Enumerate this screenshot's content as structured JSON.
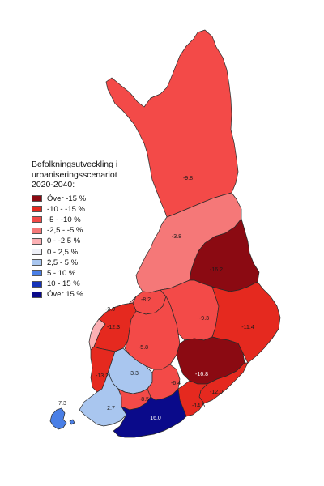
{
  "legend": {
    "title_lines": [
      "Befolkningsutveckling i",
      "urbaniseringsscenariot",
      "2020-2040:"
    ],
    "items": [
      {
        "label": "Över -15 %",
        "color": "#8b0a12"
      },
      {
        "label": "-10 - -15 %",
        "color": "#e5291f"
      },
      {
        "label": "-5 - -10 %",
        "color": "#f34a48"
      },
      {
        "label": "-2,5 - -5 %",
        "color": "#f57878"
      },
      {
        "label": "0 - -2,5 %",
        "color": "#fbb0b4"
      },
      {
        "label": "0 - 2,5 %",
        "color": "#eef0f8"
      },
      {
        "label": "2,5 - 5 %",
        "color": "#a9c6ef"
      },
      {
        "label": "5 - 10 %",
        "color": "#4a7fe6"
      },
      {
        "label": "10 - 15 %",
        "color": "#1533b9"
      },
      {
        "label": "Över 15 %",
        "color": "#0a0a8a"
      }
    ]
  },
  "regions": [
    {
      "name": "lappland",
      "value": "-9.8",
      "color": "#f34a48"
    },
    {
      "name": "norra-osterbotten",
      "value": "-3.8",
      "color": "#f57878"
    },
    {
      "name": "kajanaland",
      "value": "-16.2",
      "color": "#8b0a12"
    },
    {
      "name": "mellersta-osterbotten",
      "value": "-8.2",
      "color": "#f34a48"
    },
    {
      "name": "osterbotten",
      "value": "-2.0",
      "color": "#fbb0b4"
    },
    {
      "name": "sodra-osterbotten",
      "value": "-12.3",
      "color": "#e5291f"
    },
    {
      "name": "mellersta-finland",
      "value": "-5.8",
      "color": "#f34a48"
    },
    {
      "name": "norra-savolax",
      "value": "-9.3",
      "color": "#f34a48"
    },
    {
      "name": "norra-karelen",
      "value": "-11.4",
      "color": "#e5291f"
    },
    {
      "name": "satakunta",
      "value": "-13.2",
      "color": "#e5291f"
    },
    {
      "name": "birkaland",
      "value": "3.3",
      "color": "#a9c6ef"
    },
    {
      "name": "egentliga-finland",
      "value": "2.7",
      "color": "#a9c6ef"
    },
    {
      "name": "egentliga-tavastland",
      "value": "-8.5",
      "color": "#f34a48"
    },
    {
      "name": "paijanne-tavastland",
      "value": "-6.4",
      "color": "#f34a48"
    },
    {
      "name": "sodra-savolax",
      "value": "-16.8",
      "color": "#8b0a12"
    },
    {
      "name": "sodra-karelen",
      "value": "-12.0",
      "color": "#e5291f"
    },
    {
      "name": "kymmenedalen",
      "value": "-14.5",
      "color": "#e5291f"
    },
    {
      "name": "nyland",
      "value": "16.0",
      "color": "#0a0a8a"
    },
    {
      "name": "aland",
      "value": "7.3",
      "color": "#4a7fe6"
    }
  ]
}
